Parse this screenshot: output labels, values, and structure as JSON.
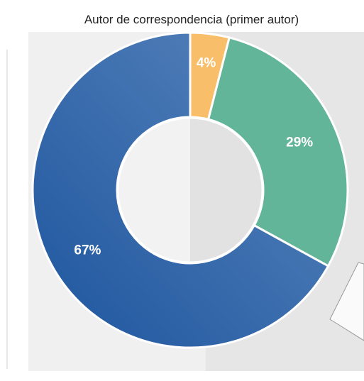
{
  "chart_data": {
    "type": "donut",
    "title": "Autor de correspondencia (primer autor)",
    "categories": [
      null,
      null,
      null
    ],
    "values": [
      4,
      29,
      67
    ],
    "value_labels": [
      "4%",
      "29%",
      "67%"
    ],
    "colors": [
      "#f9be6a",
      "#63b59a",
      "#2f66a8"
    ]
  }
}
